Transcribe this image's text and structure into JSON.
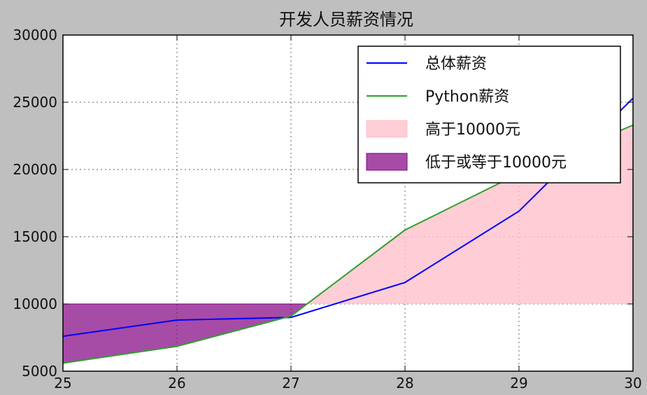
{
  "chart_data": {
    "type": "line",
    "title": "开发人员薪资情况",
    "xlabel": "",
    "ylabel": "",
    "x": [
      25,
      26,
      27,
      28,
      29,
      30
    ],
    "xlim": [
      25,
      30
    ],
    "ylim": [
      5000,
      30000
    ],
    "xticks": [
      "25",
      "26",
      "27",
      "28",
      "29",
      "30"
    ],
    "yticks": [
      "5000",
      "10000",
      "15000",
      "20000",
      "25000",
      "30000"
    ],
    "grid": true,
    "legend_position": "top-right",
    "threshold": 10000,
    "series": [
      {
        "name": "总体薪资",
        "color": "#0000ff",
        "values": [
          7600,
          8800,
          9000,
          11600,
          16900,
          25300
        ]
      },
      {
        "name": "Python薪资",
        "color": "#2ca02c",
        "values": [
          5600,
          6850,
          9100,
          15500,
          19700,
          23300
        ]
      }
    ],
    "fills": [
      {
        "name": "高于10000元",
        "color": "#ffc0cb",
        "opacity": 0.8,
        "condition": "above"
      },
      {
        "name": "低于或等于10000元",
        "color": "#800080",
        "opacity": 0.7,
        "condition": "at_or_below"
      }
    ]
  }
}
